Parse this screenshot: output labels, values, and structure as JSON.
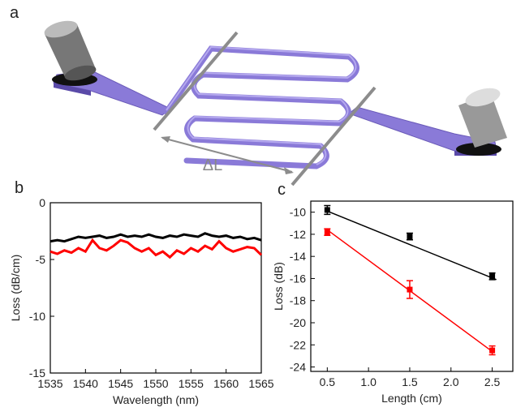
{
  "panel_labels": [
    "a",
    "b",
    "c"
  ],
  "diagram": {
    "label": "ΔL"
  },
  "chart_data": [
    {
      "type": "line",
      "x_label": "Wavelength (nm)",
      "y_label": "Loss (dB/cm)",
      "x": [
        1535,
        1536,
        1537,
        1538,
        1539,
        1540,
        1541,
        1542,
        1543,
        1544,
        1545,
        1546,
        1547,
        1548,
        1549,
        1550,
        1551,
        1552,
        1553,
        1554,
        1555,
        1556,
        1557,
        1558,
        1559,
        1560,
        1561,
        1562,
        1563,
        1564,
        1565
      ],
      "series": [
        {
          "color": "#000000",
          "values": [
            -3.4,
            -3.3,
            -3.4,
            -3.2,
            -3.0,
            -3.1,
            -3.0,
            -2.9,
            -3.1,
            -3.0,
            -2.8,
            -3.0,
            -2.9,
            -3.0,
            -2.8,
            -3.0,
            -3.1,
            -2.9,
            -3.0,
            -2.8,
            -2.9,
            -3.0,
            -2.7,
            -2.9,
            -3.0,
            -2.9,
            -3.1,
            -3.0,
            -3.2,
            -3.1,
            -3.3
          ]
        },
        {
          "color": "#ff0000",
          "values": [
            -4.3,
            -4.5,
            -4.2,
            -4.4,
            -4.0,
            -4.3,
            -3.3,
            -4.0,
            -4.2,
            -3.8,
            -3.3,
            -3.5,
            -4.0,
            -4.3,
            -4.0,
            -4.6,
            -4.3,
            -4.8,
            -4.2,
            -4.5,
            -4.0,
            -4.3,
            -3.8,
            -4.1,
            -3.4,
            -4.0,
            -4.3,
            -4.1,
            -3.9,
            -4.0,
            -4.6
          ]
        }
      ],
      "xlim": [
        1535,
        1565
      ],
      "xticks": [
        1535,
        1540,
        1545,
        1550,
        1555,
        1560,
        1565
      ],
      "ylim": [
        -15,
        0
      ],
      "yticks": [
        0,
        -5,
        -10,
        -15
      ]
    },
    {
      "type": "scatter",
      "x_label": "Length (cm)",
      "y_label": "Loss (dB)",
      "series": [
        {
          "color": "#000000",
          "x": [
            0.5,
            1.5,
            2.5
          ],
          "values": [
            -9.8,
            -12.2,
            -15.8
          ],
          "errors": [
            0.4,
            0.3,
            0.3
          ],
          "fit_x": [
            0.5,
            2.55
          ],
          "fit_y": [
            -9.9,
            -16.1
          ]
        },
        {
          "color": "#ff0000",
          "x": [
            0.5,
            1.5,
            2.5
          ],
          "values": [
            -11.8,
            -17.0,
            -22.5
          ],
          "errors": [
            0.3,
            0.8,
            0.4
          ],
          "fit_x": [
            0.5,
            2.5
          ],
          "fit_y": [
            -11.6,
            -22.6
          ]
        }
      ],
      "xlim": [
        0.3,
        2.75
      ],
      "xticks": [
        0.5,
        1.0,
        1.5,
        2.0,
        2.5
      ],
      "ylim": [
        -24.4,
        -9
      ],
      "yticks": [
        -10,
        -12,
        -14,
        -16,
        -18,
        -20,
        -22,
        -24
      ]
    }
  ]
}
